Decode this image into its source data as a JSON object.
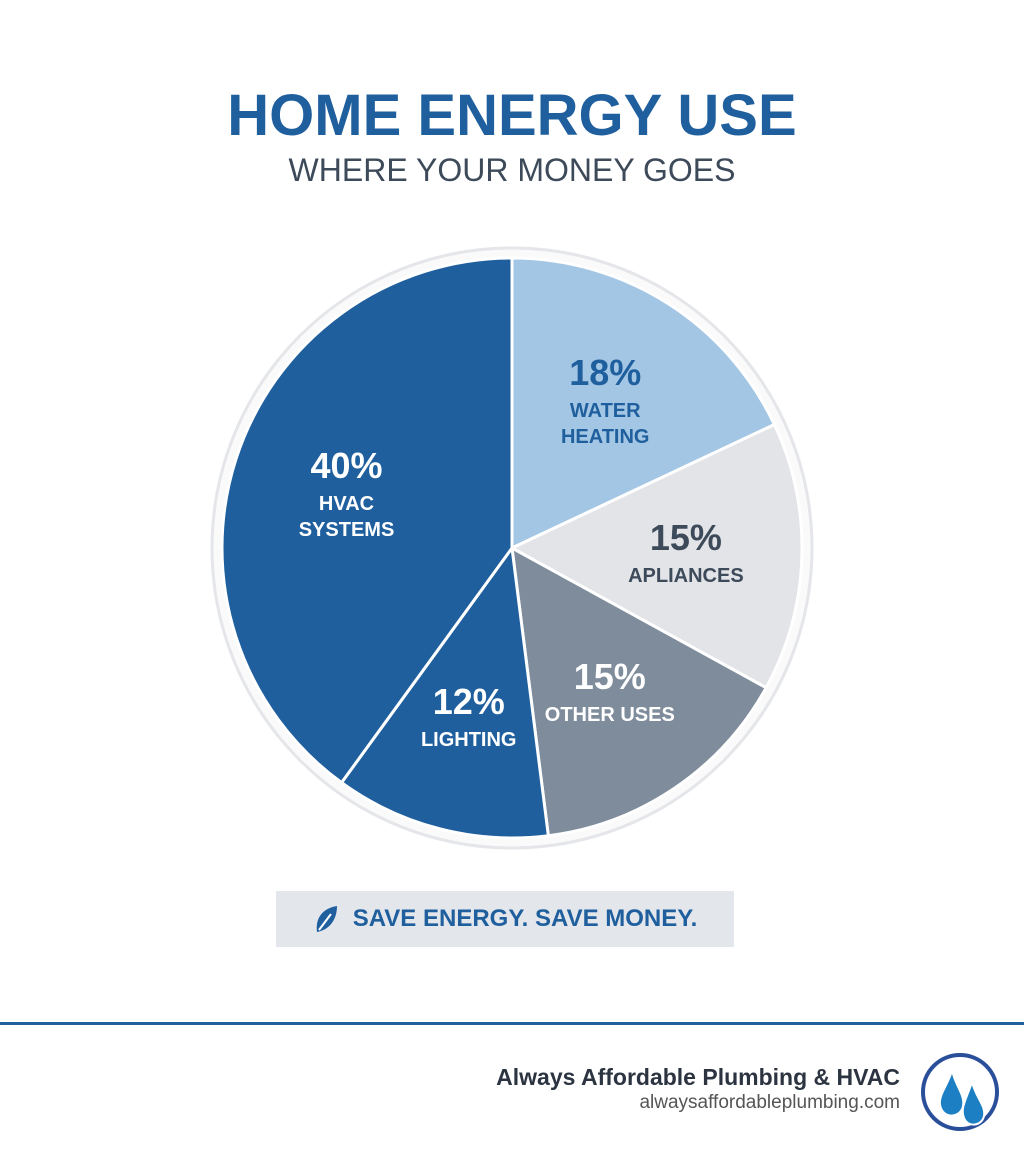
{
  "chart_data": {
    "type": "pie",
    "title": "HOME ENERGY USE",
    "subtitle": "WHERE YOUR MONEY GOES",
    "categories": [
      "WATER HEATING",
      "APLIANCES",
      "OTHER USES",
      "LIGHTING",
      "HVAC SYSTEMS"
    ],
    "values": [
      18,
      15,
      15,
      12,
      40
    ],
    "value_labels": [
      "18%",
      "15%",
      "15%",
      "12%",
      "40%"
    ],
    "colors": [
      "#a3c6e4",
      "#e2e4e8",
      "#7e8c9c",
      "#1f5f9e",
      "#1f5f9e"
    ]
  },
  "banner": {
    "text": "SAVE ENERGY. SAVE MONEY."
  },
  "footer": {
    "company": "Always Affordable Plumbing & HVAC",
    "url": "alwaysaffordableplumbing.com"
  }
}
